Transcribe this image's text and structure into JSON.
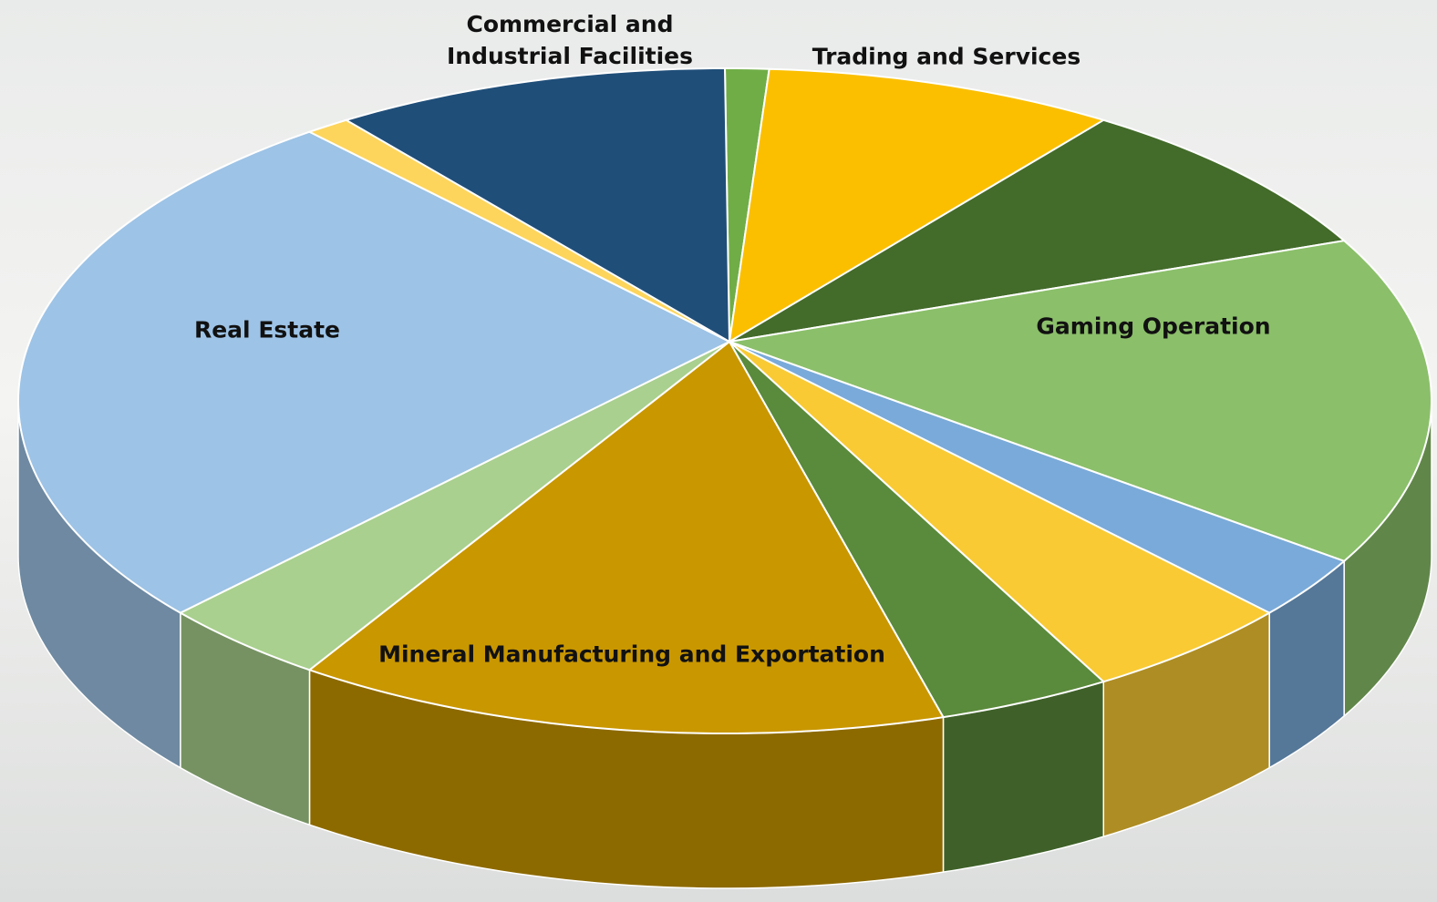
{
  "chart_data": {
    "type": "pie3d",
    "categories": [
      null,
      "Trading and Services",
      null,
      "Gaming Operation",
      null,
      null,
      null,
      "Mineral Manufacturing and Exportation",
      null,
      "Real Estate",
      null,
      "Commercial and Industrial Facilities"
    ],
    "values": [
      1,
      8,
      8,
      16,
      3,
      5,
      4,
      15,
      4,
      26,
      1,
      9
    ],
    "colors": [
      "#70ad47",
      "#fbbf00",
      "#436b2a",
      "#8bbf6a",
      "#7aaad9",
      "#f9ca33",
      "#5a8a3b",
      "#c99700",
      "#a9d08e",
      "#9dc3e6",
      "#fdd55c",
      "#1f4e79"
    ]
  }
}
